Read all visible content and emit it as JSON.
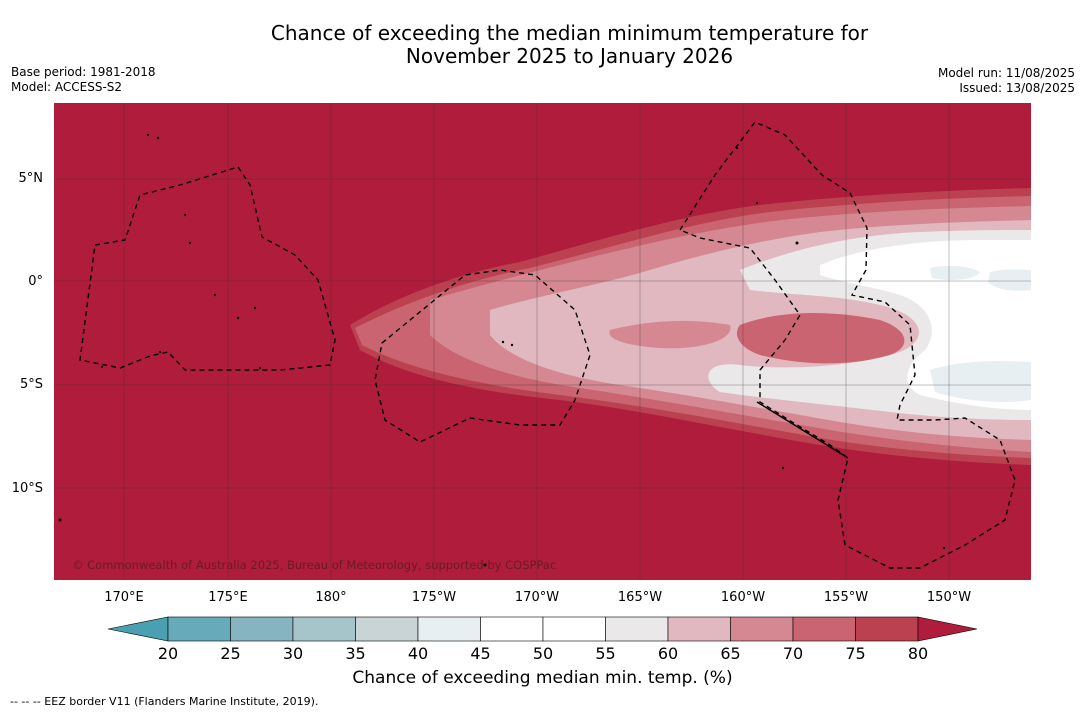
{
  "title_line1": "Chance of exceeding the median minimum temperature for",
  "title_line2": "November 2025 to January 2026",
  "base_period": "Base period: 1981-2018",
  "model": "Model: ACCESS-S2",
  "model_run": "Model run: 11/08/2025",
  "issued": "Issued: 13/08/2025",
  "lat_labels": [
    "5°N",
    "0°",
    "5°S",
    "10°S"
  ],
  "lon_labels": [
    "170°E",
    "175°E",
    "180°",
    "175°W",
    "170°W",
    "165°W",
    "160°W",
    "155°W",
    "150°W"
  ],
  "copyright": "© Commonwealth of Australia 2025, Bureau of Meteorology, supported by COSPPac",
  "colorbar": {
    "ticks": [
      "20",
      "25",
      "30",
      "35",
      "40",
      "45",
      "50",
      "55",
      "60",
      "65",
      "70",
      "75",
      "80"
    ],
    "colors": [
      "#67abbb",
      "#86b4c1",
      "#a5c5ca",
      "#c9d4d7",
      "#e8eff2",
      "#ffffff",
      "#ffffff",
      "#ebe8ea",
      "#e1b8bf",
      "#d58891",
      "#c96470",
      "#bc4150"
    ],
    "under_color": "#4a9fb0",
    "over_color": "#b01c3c",
    "label": "Chance of exceeding median min. temp. (%)"
  },
  "footer": "--  --  -- EEZ border V11 (Flanders Marine Institute, 2019)."
}
